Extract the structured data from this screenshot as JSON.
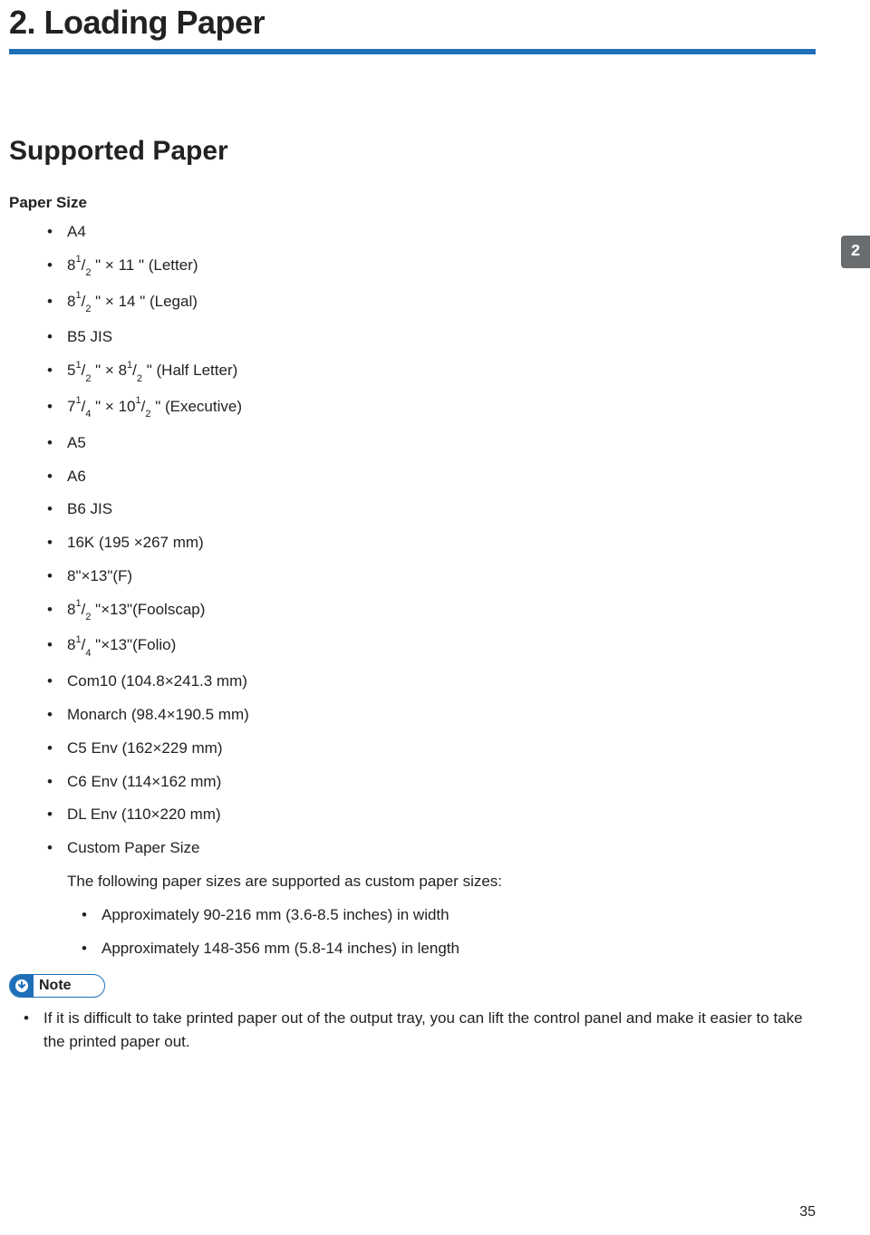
{
  "chapter": {
    "title": "2. Loading Paper",
    "accent_color": "#1e6fb8"
  },
  "side_tab": {
    "number": "2",
    "bg_color": "#6a6d70"
  },
  "section": {
    "title": "Supported Paper"
  },
  "paper_size": {
    "heading": "Paper Size",
    "items": [
      {
        "html": "A4"
      },
      {
        "html": "8<span class='frac'><sup>1</sup>/<sub>2</sub></span> \" × 11 \" (Letter)"
      },
      {
        "html": "8<span class='frac'><sup>1</sup>/<sub>2</sub></span> \" × 14 \" (Legal)"
      },
      {
        "html": "B5 JIS"
      },
      {
        "html": "5<span class='frac'><sup>1</sup>/<sub>2</sub></span> \" × 8<span class='frac'><sup>1</sup>/<sub>2</sub></span> \" (Half Letter)"
      },
      {
        "html": "7<span class='frac'><sup>1</sup>/<sub>4</sub></span> \" × 10<span class='frac'><sup>1</sup>/<sub>2</sub></span> \" (Executive)"
      },
      {
        "html": "A5"
      },
      {
        "html": "A6"
      },
      {
        "html": "B6 JIS"
      },
      {
        "html": "16K (195 ×267 mm)"
      },
      {
        "html": "8\"×13\"(F)"
      },
      {
        "html": "8<span class='frac'><sup>1</sup>/<sub>2</sub></span> \"×13\"(Foolscap)"
      },
      {
        "html": "8<span class='frac'><sup>1</sup>/<sub>4</sub></span> \"×13\"(Folio)"
      },
      {
        "html": "Com10 (104.8×241.3 mm)"
      },
      {
        "html": "Monarch (98.4×190.5 mm)"
      },
      {
        "html": "C5 Env (162×229 mm)"
      },
      {
        "html": "C6 Env (114×162 mm)"
      },
      {
        "html": "DL Env (110×220 mm)"
      }
    ],
    "custom": {
      "label": "Custom Paper Size",
      "intro": "The following paper sizes are supported as custom paper sizes:",
      "subitems": [
        "Approximately 90-216 mm (3.6-8.5 inches) in width",
        "Approximately 148-356 mm (5.8-14 inches) in length"
      ]
    }
  },
  "note": {
    "label": "Note",
    "items": [
      "If it is difficult to take printed paper out of the output tray, you can lift the control panel and make it easier to take the printed paper out."
    ]
  },
  "page_number": "35"
}
